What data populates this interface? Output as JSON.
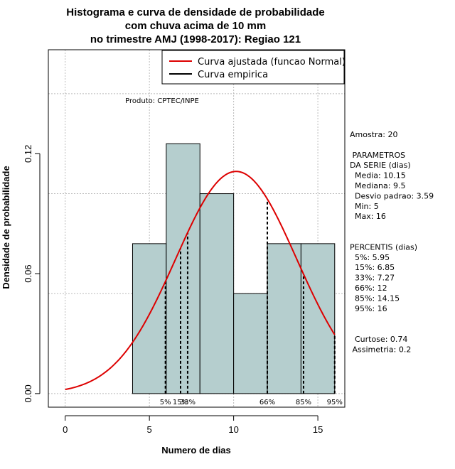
{
  "chart_data": {
    "type": "bar",
    "title": [
      "Histograma e curva de densidade de probabilidade",
      "com chuva acima de 10 mm",
      "no trimestre AMJ (1998-2017): Regiao 121"
    ],
    "xlabel": "Numero de dias",
    "ylabel": "Densidade de probabilidade",
    "xlim": [
      -1,
      16.6
    ],
    "ylim": [
      -0.0068,
      0.172
    ],
    "x_ticks": [
      0,
      5,
      10,
      15
    ],
    "y_ticks": [
      0.0,
      0.06,
      0.12
    ],
    "y_tick_labels": [
      "0.00",
      "0.06",
      "0.12"
    ],
    "grid_x": [
      0,
      5,
      10,
      15
    ],
    "grid_y": [
      0,
      0.05,
      0.1,
      0.15
    ],
    "bins": [
      {
        "x0": 4,
        "x1": 6,
        "density": 0.075
      },
      {
        "x0": 6,
        "x1": 8,
        "density": 0.125
      },
      {
        "x0": 8,
        "x1": 10,
        "density": 0.1
      },
      {
        "x0": 10,
        "x1": 12,
        "density": 0.05
      },
      {
        "x0": 12,
        "x1": 14,
        "density": 0.075
      },
      {
        "x0": 14,
        "x1": 16,
        "density": 0.075
      }
    ],
    "bar_color": "#b5cece",
    "curve_color": "#dd0000",
    "normal_fit": {
      "mean": 10.15,
      "sd": 3.59,
      "x_from": 0,
      "x_to": 16
    },
    "percentile_lines": [
      {
        "label": "5%",
        "x": 5.95
      },
      {
        "label": "15%",
        "x": 6.85
      },
      {
        "label": "33%",
        "x": 7.27
      },
      {
        "label": "66%",
        "x": 12
      },
      {
        "label": "85%",
        "x": 14.15
      },
      {
        "label": "95%",
        "x": 16
      }
    ],
    "legend": [
      {
        "label": "Curva ajustada (funcao Normal)",
        "color": "#dd0000"
      },
      {
        "label": "Curva empirica",
        "color": "#000000"
      }
    ],
    "legend_position": "top-right",
    "annotations": {
      "product": "Produto: CPTEC/INPE",
      "side_lines": [
        "Amostra: 20",
        "",
        " PARAMETROS",
        "DA SERIE (dias)",
        "  Media: 10.15",
        "  Mediana: 9.5",
        "  Desvio padrao: 3.59",
        "  Min: 5",
        "  Max: 16",
        "",
        "",
        "PERCENTIS (dias)",
        "  5%: 5.95",
        "  15%: 6.85",
        "  33%: 7.27",
        "  66%: 12",
        "  85%: 14.15",
        "  95%: 16",
        "",
        "",
        "  Curtose: 0.74",
        " Assimetria: 0.2"
      ]
    }
  }
}
